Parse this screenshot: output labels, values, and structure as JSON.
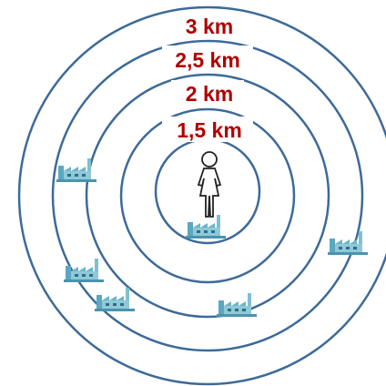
{
  "ring_labels": [
    "3 km",
    "2,5 km",
    "2 km",
    "1,5 km"
  ]
}
